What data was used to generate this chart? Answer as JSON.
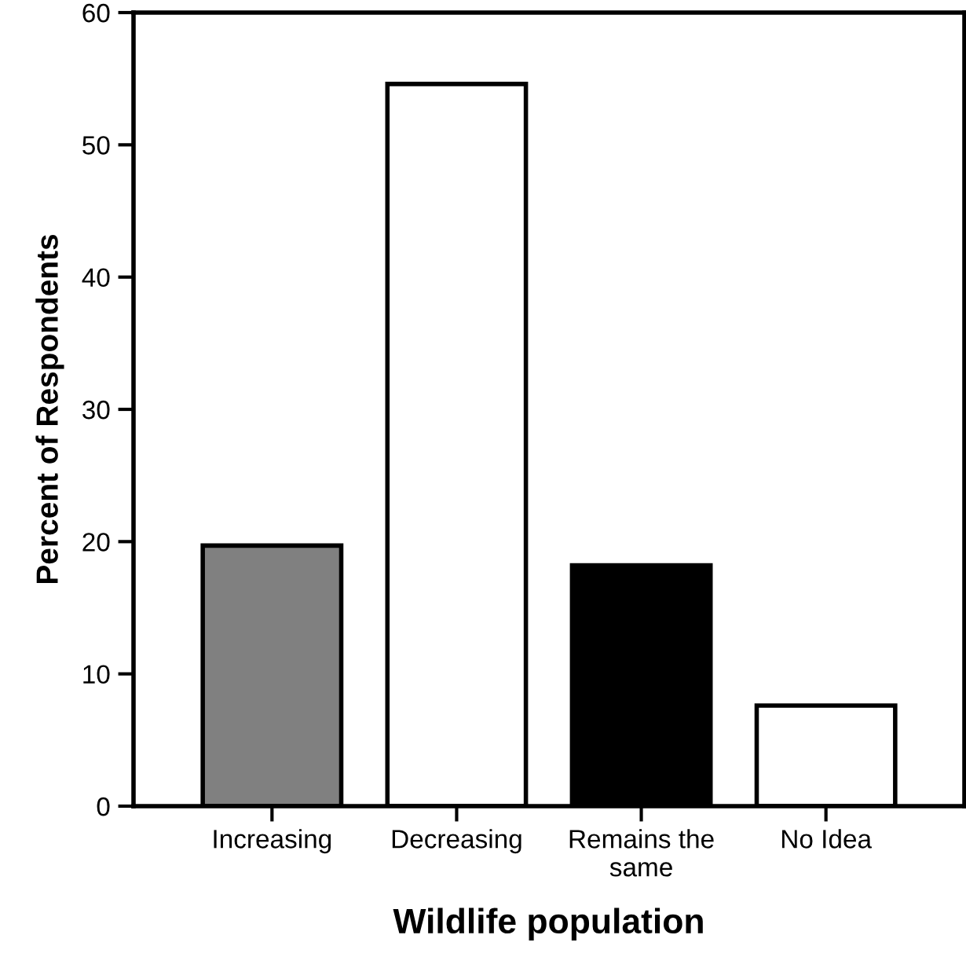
{
  "chart_data": {
    "type": "bar",
    "xlabel": "Wildlife population",
    "ylabel": "Percent of Respondents",
    "categories": [
      "Increasing",
      "Decreasing",
      "Remains the\nsame",
      "No Idea"
    ],
    "values": [
      19.7,
      54.6,
      18.2,
      7.6
    ],
    "colors": [
      "#808080",
      "#ffffff",
      "#000000",
      "#ffffff"
    ],
    "ylim": [
      0,
      60
    ],
    "yticks": [
      0,
      10,
      20,
      30,
      40,
      50,
      60
    ],
    "grid": false
  }
}
